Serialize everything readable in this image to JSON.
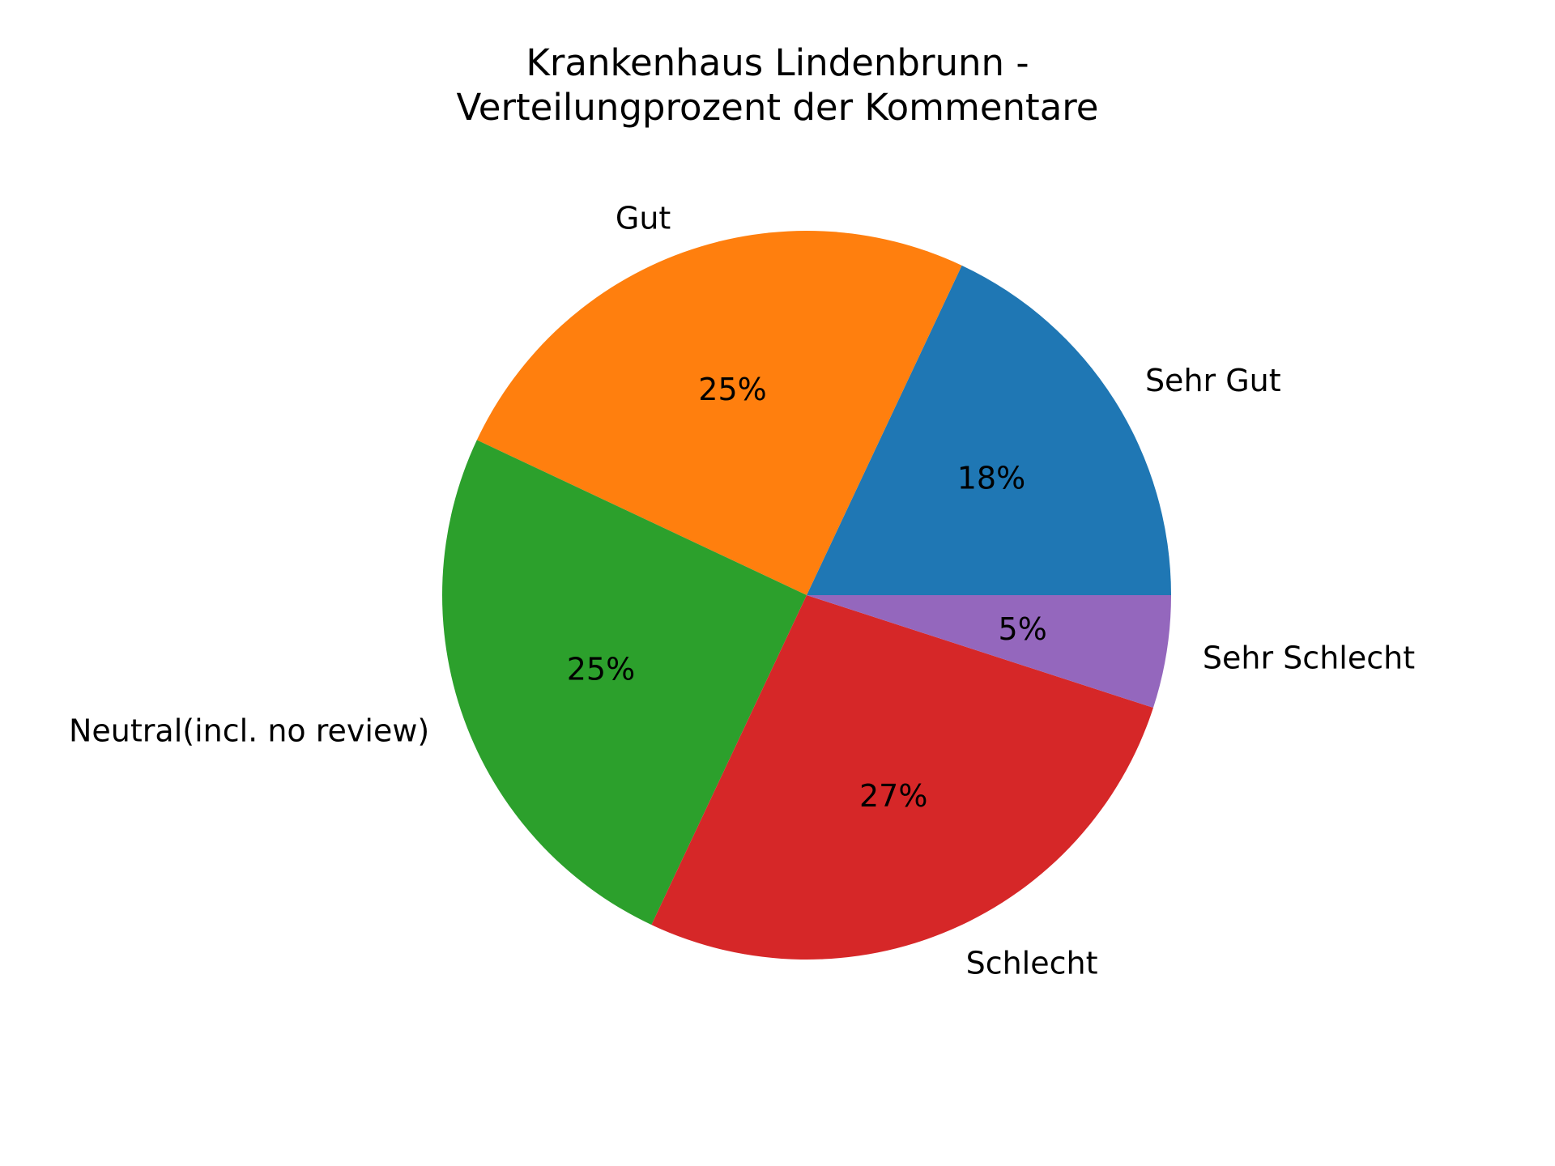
{
  "chart_data": {
    "type": "pie",
    "title": "Krankenhaus Lindenbrunn  -\nVerteilungprozent der Kommentare",
    "title_lines": [
      "Krankenhaus Lindenbrunn  -",
      "Verteilungprozent der Kommentare"
    ],
    "slices": [
      {
        "label": "Sehr Gut",
        "value": 18,
        "pct_label": "18%",
        "color": "#1f77b4"
      },
      {
        "label": "Gut",
        "value": 25,
        "pct_label": "25%",
        "color": "#ff7f0e"
      },
      {
        "label": "Neutral(incl. no review)",
        "value": 25,
        "pct_label": "25%",
        "color": "#2ca02c"
      },
      {
        "label": "Schlecht",
        "value": 27,
        "pct_label": "27%",
        "color": "#d62728"
      },
      {
        "label": "Sehr Schlecht",
        "value": 5,
        "pct_label": "5%",
        "color": "#9467bd"
      }
    ],
    "start_angle": 0,
    "direction": "counterclockwise",
    "legend": "none"
  }
}
